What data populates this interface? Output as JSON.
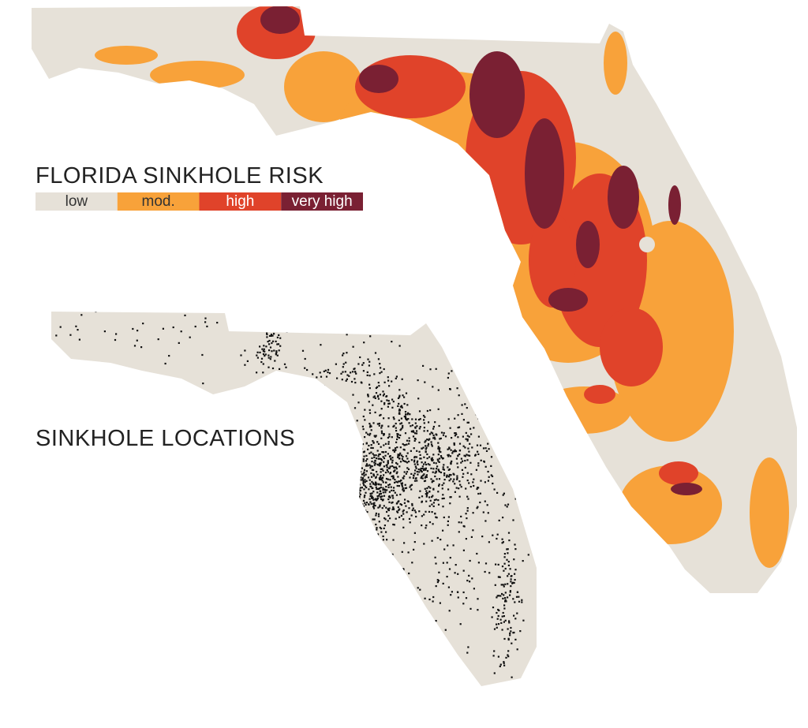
{
  "title": "FLORIDA SINKHOLE RISK",
  "legend": [
    {
      "label": "low",
      "color": "#e6e1d8"
    },
    {
      "label": "mod.",
      "color": "#f8a23a"
    },
    {
      "label": "high",
      "color": "#e0432a"
    },
    {
      "label": "very high",
      "color": "#7a2033"
    }
  ],
  "locations_title": "SINKHOLE LOCATIONS"
}
